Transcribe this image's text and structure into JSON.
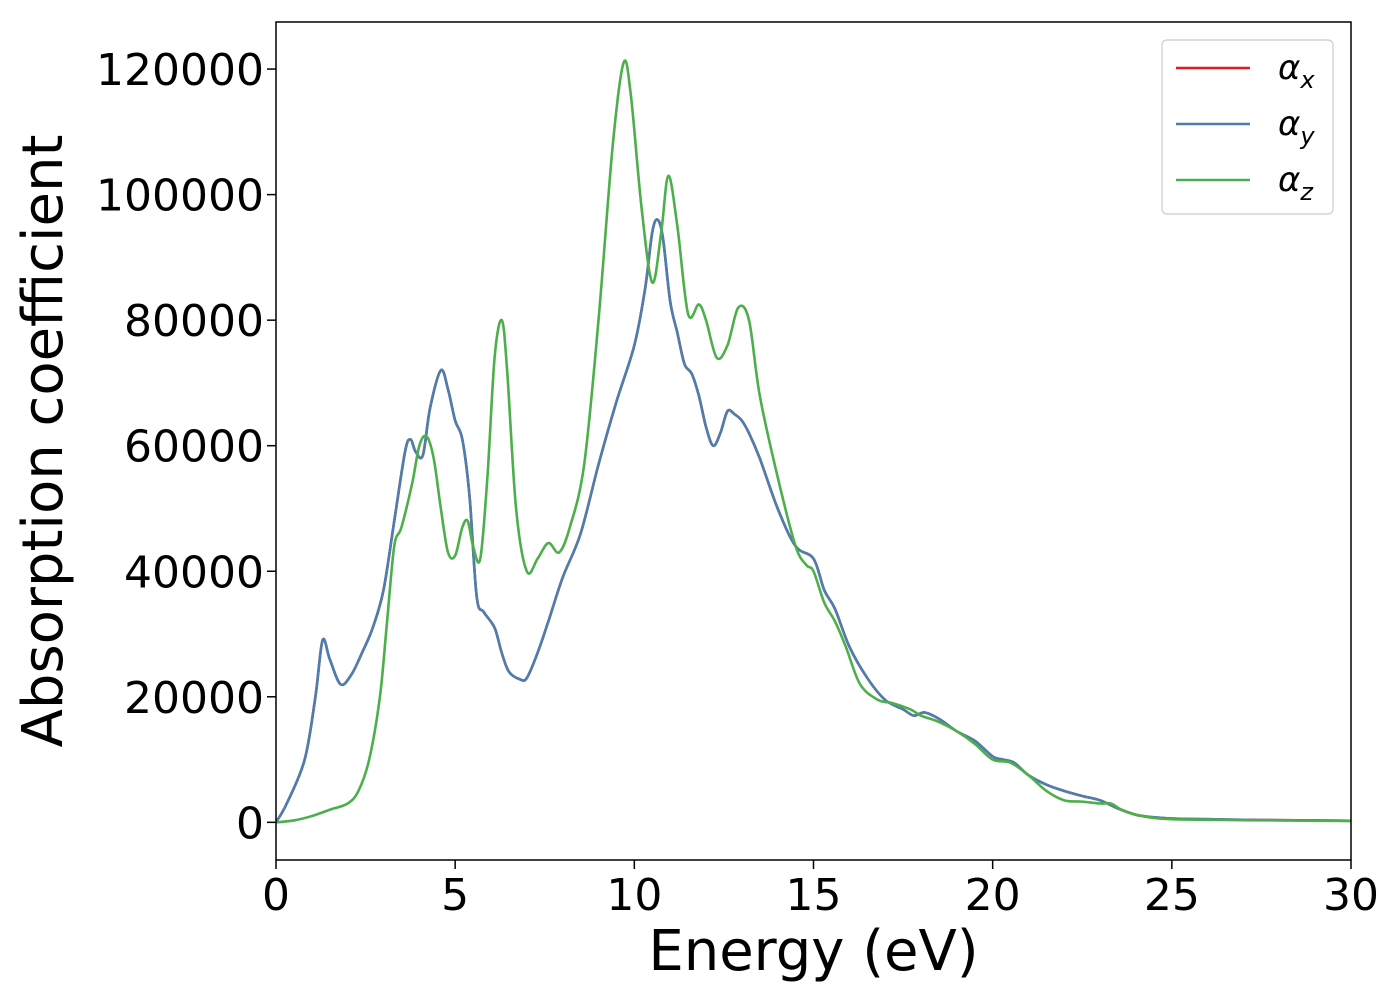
{
  "chart_data": {
    "type": "line",
    "xlabel": "Energy (eV)",
    "ylabel": "Absorption coefficient",
    "xlim": [
      0,
      30
    ],
    "ylim": [
      -6000,
      127500
    ],
    "xticks": [
      0,
      5,
      10,
      15,
      20,
      25,
      30
    ],
    "yticks": [
      0,
      20000,
      40000,
      60000,
      80000,
      100000,
      120000
    ],
    "grid": false,
    "legend_position": "top-right",
    "series": [
      {
        "name": "αx",
        "symbol": "α",
        "subscript": "x",
        "color": "#e41a1c",
        "x": [
          0,
          0.3,
          0.8,
          1.1,
          1.3,
          1.5,
          1.8,
          2.1,
          2.4,
          2.7,
          3.0,
          3.3,
          3.6,
          3.75,
          3.9,
          4.1,
          4.3,
          4.6,
          4.8,
          5.0,
          5.2,
          5.4,
          5.6,
          5.8,
          6.1,
          6.3,
          6.5,
          6.8,
          7.0,
          7.3,
          7.6,
          8.0,
          8.5,
          9.0,
          9.5,
          10.0,
          10.3,
          10.5,
          10.65,
          10.8,
          11.0,
          11.2,
          11.4,
          11.6,
          11.8,
          12.0,
          12.2,
          12.4,
          12.6,
          12.8,
          13.0,
          13.2,
          13.5,
          14.0,
          14.5,
          15.0,
          15.3,
          15.6,
          16.0,
          16.5,
          17.0,
          17.5,
          17.8,
          18.1,
          18.5,
          19.0,
          19.5,
          20.0,
          20.3,
          20.6,
          21.0,
          21.5,
          22.0,
          22.5,
          23.0,
          23.5,
          24.0,
          24.5,
          25.0,
          26.0,
          27.0,
          28.0,
          29.0,
          30.0
        ],
        "values": [
          0,
          3000,
          10000,
          20000,
          29000,
          26000,
          22000,
          23500,
          27000,
          31000,
          37000,
          48000,
          59000,
          61000,
          59000,
          58500,
          66000,
          72000,
          69000,
          64000,
          61000,
          52000,
          36000,
          33500,
          31000,
          27000,
          24000,
          22800,
          23000,
          27000,
          32000,
          39000,
          46000,
          57000,
          67000,
          76000,
          85000,
          94000,
          96000,
          93000,
          83000,
          78000,
          73000,
          71500,
          68000,
          63000,
          60000,
          62000,
          65500,
          65000,
          64000,
          62000,
          58000,
          50000,
          44000,
          42000,
          37000,
          34000,
          28000,
          23000,
          19500,
          18000,
          17000,
          17500,
          16500,
          14500,
          13000,
          10500,
          10000,
          9500,
          7500,
          6000,
          5000,
          4200,
          3500,
          2200,
          1200,
          800,
          600,
          500,
          400,
          350,
          300,
          250
        ]
      },
      {
        "name": "αy",
        "symbol": "α",
        "subscript": "y",
        "color": "#4a7fb0",
        "x": [
          0,
          0.3,
          0.8,
          1.1,
          1.3,
          1.5,
          1.8,
          2.1,
          2.4,
          2.7,
          3.0,
          3.3,
          3.6,
          3.75,
          3.9,
          4.1,
          4.3,
          4.6,
          4.8,
          5.0,
          5.2,
          5.4,
          5.6,
          5.8,
          6.1,
          6.3,
          6.5,
          6.8,
          7.0,
          7.3,
          7.6,
          8.0,
          8.5,
          9.0,
          9.5,
          10.0,
          10.3,
          10.5,
          10.65,
          10.8,
          11.0,
          11.2,
          11.4,
          11.6,
          11.8,
          12.0,
          12.2,
          12.4,
          12.6,
          12.8,
          13.0,
          13.2,
          13.5,
          14.0,
          14.5,
          15.0,
          15.3,
          15.6,
          16.0,
          16.5,
          17.0,
          17.5,
          17.8,
          18.1,
          18.5,
          19.0,
          19.5,
          20.0,
          20.3,
          20.6,
          21.0,
          21.5,
          22.0,
          22.5,
          23.0,
          23.5,
          24.0,
          24.5,
          25.0,
          26.0,
          27.0,
          28.0,
          29.0,
          30.0
        ],
        "values": [
          0,
          3000,
          10000,
          20000,
          29000,
          26000,
          22000,
          23500,
          27000,
          31000,
          37000,
          48000,
          59000,
          61000,
          59000,
          58500,
          66000,
          72000,
          69000,
          64000,
          61000,
          52000,
          36000,
          33500,
          31000,
          27000,
          24000,
          22800,
          23000,
          27000,
          32000,
          39000,
          46000,
          57000,
          67000,
          76000,
          85000,
          94000,
          96000,
          93000,
          83000,
          78000,
          73000,
          71500,
          68000,
          63000,
          60000,
          62000,
          65500,
          65000,
          64000,
          62000,
          58000,
          50000,
          44000,
          42000,
          37000,
          34000,
          28000,
          23000,
          19500,
          18000,
          17000,
          17500,
          16500,
          14500,
          13000,
          10500,
          10000,
          9500,
          7500,
          6000,
          5000,
          4200,
          3500,
          2200,
          1200,
          800,
          600,
          500,
          400,
          350,
          300,
          250
        ]
      },
      {
        "name": "αz",
        "symbol": "α",
        "subscript": "z",
        "color": "#4daf4a",
        "x": [
          0,
          0.5,
          1.0,
          1.5,
          2.0,
          2.3,
          2.6,
          2.9,
          3.1,
          3.3,
          3.5,
          3.8,
          4.0,
          4.2,
          4.4,
          4.6,
          4.8,
          5.0,
          5.2,
          5.35,
          5.5,
          5.7,
          5.9,
          6.1,
          6.3,
          6.45,
          6.7,
          7.0,
          7.3,
          7.6,
          7.9,
          8.2,
          8.6,
          9.0,
          9.4,
          9.7,
          9.9,
          10.2,
          10.5,
          10.75,
          10.95,
          11.2,
          11.5,
          11.8,
          12.0,
          12.3,
          12.6,
          12.9,
          13.2,
          13.5,
          14.0,
          14.5,
          14.8,
          15.0,
          15.3,
          15.6,
          15.9,
          16.3,
          16.8,
          17.2,
          17.7,
          18.0,
          18.5,
          19.0,
          19.5,
          20.0,
          20.5,
          21.0,
          21.5,
          22.0,
          22.5,
          23.0,
          23.3,
          23.6,
          24.0,
          24.5,
          25.0,
          26.0,
          27.0,
          28.0,
          29.0,
          30.0
        ],
        "values": [
          0,
          300,
          1000,
          2000,
          3000,
          5000,
          10000,
          20000,
          32000,
          44000,
          47000,
          54000,
          60000,
          61500,
          58000,
          50000,
          43000,
          42500,
          47000,
          48000,
          44000,
          42000,
          55000,
          74000,
          80000,
          72000,
          50000,
          40000,
          42000,
          44500,
          43000,
          47000,
          57000,
          80000,
          108000,
          121000,
          116000,
          98000,
          86000,
          94000,
          103000,
          95000,
          81000,
          82500,
          80000,
          74000,
          76000,
          82000,
          80000,
          68000,
          55000,
          44000,
          41000,
          40000,
          35000,
          32000,
          28000,
          22000,
          19500,
          19000,
          18000,
          17000,
          16000,
          14500,
          12500,
          10000,
          9500,
          7500,
          5000,
          3500,
          3300,
          3000,
          3000,
          2000,
          1200,
          700,
          500,
          400,
          350,
          300,
          250,
          220
        ]
      }
    ]
  }
}
